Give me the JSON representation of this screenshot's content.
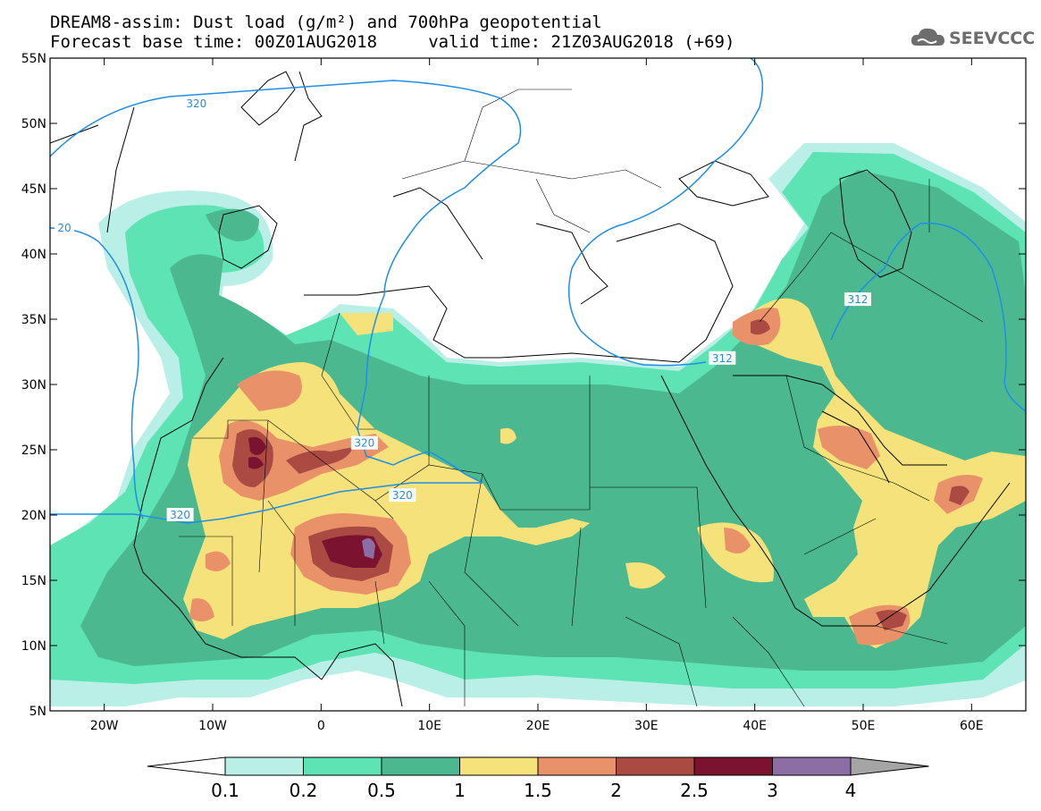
{
  "header": {
    "title_line1": "DREAM8-assim: Dust load (g/m²) and 700hPa geopotential",
    "title_line2": "Forecast base time: 00Z01AUG2018     valid time: 21Z03AUG2018 (+69)",
    "logo_text": "SEEVCCC"
  },
  "axes": {
    "lat_labels": [
      "55N",
      "50N",
      "45N",
      "40N",
      "35N",
      "30N",
      "25N",
      "20N",
      "15N",
      "10N",
      "5N"
    ],
    "lat_values": [
      55,
      50,
      45,
      40,
      35,
      30,
      25,
      20,
      15,
      10,
      5
    ],
    "lon_labels": [
      "20W",
      "10W",
      "0",
      "10E",
      "20E",
      "30E",
      "40E",
      "50E",
      "60E"
    ],
    "lon_values": [
      -20,
      -10,
      0,
      10,
      20,
      30,
      40,
      50,
      60
    ],
    "lon_range": [
      -25,
      65
    ],
    "lat_range": [
      5,
      55
    ]
  },
  "colorbar": {
    "labels": [
      "0.1",
      "0.2",
      "0.5",
      "1",
      "1.5",
      "2",
      "2.5",
      "3",
      "4"
    ],
    "colors": [
      "#b9efe6",
      "#5ee3b4",
      "#4cb890",
      "#f5e27a",
      "#e9926a",
      "#aa4a42",
      "#7a1230",
      "#8c6ea4",
      "#a5a5a5"
    ]
  },
  "contour_labels": [
    {
      "text": "320",
      "lon": -11.5,
      "lat": 51.5
    },
    {
      "text": "20",
      "lon": -25,
      "lat": 42
    },
    {
      "text": "312",
      "lon": 49.5,
      "lat": 36.5
    },
    {
      "text": "312",
      "lon": 37,
      "lat": 32
    },
    {
      "text": "320",
      "lon": 4,
      "lat": 25.5
    },
    {
      "text": "320",
      "lon": 7.5,
      "lat": 21.5
    },
    {
      "text": "320",
      "lon": -13,
      "lat": 20
    }
  ],
  "contour_color": "#1f8ee6"
}
